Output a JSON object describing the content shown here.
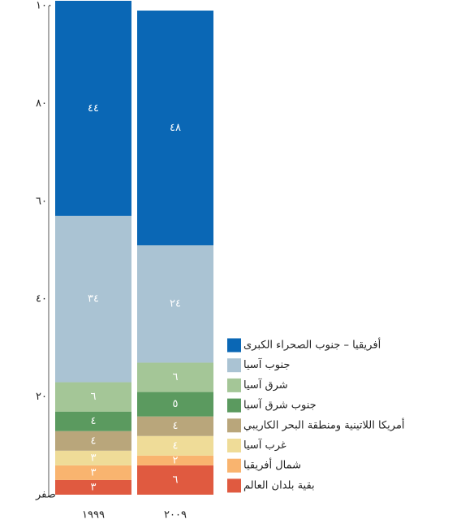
{
  "chart_data": {
    "type": "stacked_bar",
    "categories": [
      "١٩٩٩",
      "٢٠٠٩"
    ],
    "series": [
      {
        "name": "بقية بلدان العالم",
        "color": "#e05a40",
        "values": [
          3,
          6
        ],
        "value_labels": [
          "٣",
          "٦"
        ]
      },
      {
        "name": "شمال أفريقيا",
        "color": "#f9b46f",
        "values": [
          3,
          2
        ],
        "value_labels": [
          "٣",
          "٢"
        ]
      },
      {
        "name": "غرب آسيا",
        "color": "#efdc98",
        "values": [
          3,
          4
        ],
        "value_labels": [
          "٣",
          "٤"
        ]
      },
      {
        "name": "أمريكا اللاتينية ومنطقة البحر الكاريبي",
        "color": "#b9a67b",
        "values": [
          4,
          4
        ],
        "value_labels": [
          "٤",
          "٤"
        ]
      },
      {
        "name": "جنوب شرق آسيا",
        "color": "#5b9a5f",
        "values": [
          4,
          5
        ],
        "value_labels": [
          "٤",
          "٥"
        ]
      },
      {
        "name": "شرق آسيا",
        "color": "#a4c697",
        "values": [
          6,
          6
        ],
        "value_labels": [
          "٦",
          "٦"
        ]
      },
      {
        "name": "جنوب آسيا",
        "color": "#aac3d3",
        "values": [
          34,
          24
        ],
        "value_labels": [
          "٣٤",
          "٢٤"
        ]
      },
      {
        "name": "أفريقيا – جنوب الصحراء الكبرى",
        "color": "#0a67b5",
        "values": [
          44,
          48
        ],
        "value_labels": [
          "٤٤",
          "٤٨"
        ]
      }
    ],
    "ylim": [
      0,
      100
    ],
    "yticks": [
      {
        "value": 0,
        "label": "صفر"
      },
      {
        "value": 20,
        "label": "٢٠"
      },
      {
        "value": 40,
        "label": "٤٠"
      },
      {
        "value": 60,
        "label": "٦٠"
      },
      {
        "value": 80,
        "label": "٨٠"
      },
      {
        "value": 100,
        "label": "١٠٠"
      }
    ],
    "grid": false
  }
}
